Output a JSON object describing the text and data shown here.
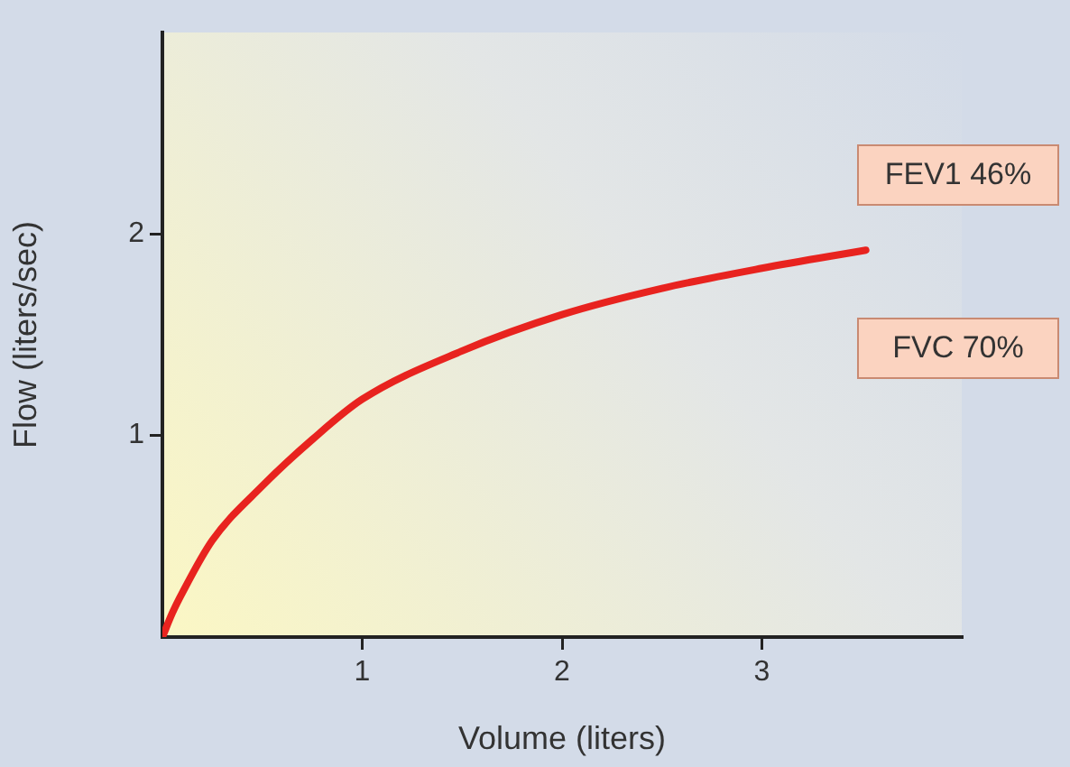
{
  "chart_data": {
    "type": "line",
    "xlabel": "Volume (liters)",
    "ylabel": "Flow (liters/sec)",
    "x": [
      0,
      0.05,
      0.1,
      0.25,
      0.5,
      0.75,
      1,
      1.5,
      2,
      2.5,
      3,
      3.52
    ],
    "series": [
      {
        "color": "#e8231f",
        "values": [
          0,
          0.12,
          0.22,
          0.48,
          0.75,
          0.98,
          1.18,
          1.42,
          1.6,
          1.73,
          1.83,
          1.92
        ]
      }
    ],
    "xlim": [
      0,
      4
    ],
    "xticks": [
      1,
      2,
      3
    ],
    "ylim": [
      0,
      3
    ],
    "yticks": [
      1,
      2
    ],
    "grid": false,
    "legend": false,
    "marker": "none",
    "line_style": "solid",
    "annotations": [
      "FEV1 46%",
      "FVC 70%"
    ]
  }
}
